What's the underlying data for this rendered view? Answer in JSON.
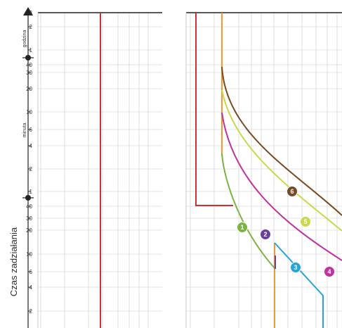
{
  "chart_data": {
    "type": "line",
    "title": "",
    "ylabel": "Czas zadziałania",
    "xlabel": "",
    "y_scale": "log",
    "unit_bands": [
      {
        "label": "godzina",
        "ticks": [
          "3",
          "2",
          "1"
        ]
      },
      {
        "label": "minuta",
        "ticks": [
          "40",
          "30",
          "20",
          "10",
          "6",
          "4",
          "2",
          "1"
        ]
      },
      {
        "label": "",
        "ticks": [
          "40",
          "30",
          "20",
          "10",
          "6",
          "4",
          "2"
        ]
      }
    ],
    "curve_labels": [
      "1",
      "2",
      "3",
      "4",
      "5",
      "6"
    ],
    "colors": {
      "red": "#d32f2f",
      "orange": "#f39a2b",
      "green": "#7cb342",
      "purple": "#6a3fa0",
      "blue": "#29a3dd",
      "magenta": "#c0309f",
      "yellowgreen": "#c9d94a",
      "brown": "#7a4a22",
      "grid": "#c9c9c9",
      "axis": "#222222"
    }
  }
}
